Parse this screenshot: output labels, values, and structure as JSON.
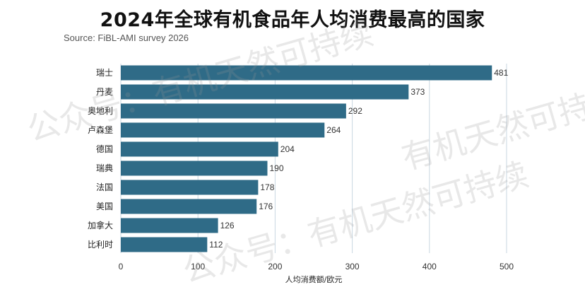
{
  "title": "2024年全球有机食品年人均消费最高的国家",
  "source": "Source: FiBL-AMI survey 2026",
  "watermark": [
    "公众号：有机天然可持续",
    "公众号：有机天然可持续",
    "有机天然可持续"
  ],
  "colors": {
    "bar": "#2f6b87",
    "grid": "#c9d7e2"
  },
  "chart_data": {
    "type": "bar",
    "orientation": "horizontal",
    "categories": [
      "瑞士",
      "丹麦",
      "奥地利",
      "卢森堡",
      "德国",
      "瑞典",
      "法国",
      "美国",
      "加拿大",
      "比利时"
    ],
    "values": [
      481,
      373,
      292,
      264,
      204,
      190,
      178,
      176,
      126,
      112
    ],
    "xlabel": "人均消费额/欧元",
    "xlim": [
      0,
      500
    ],
    "xticks": [
      0,
      100,
      200,
      300,
      400,
      500
    ],
    "grid": "vertical"
  }
}
